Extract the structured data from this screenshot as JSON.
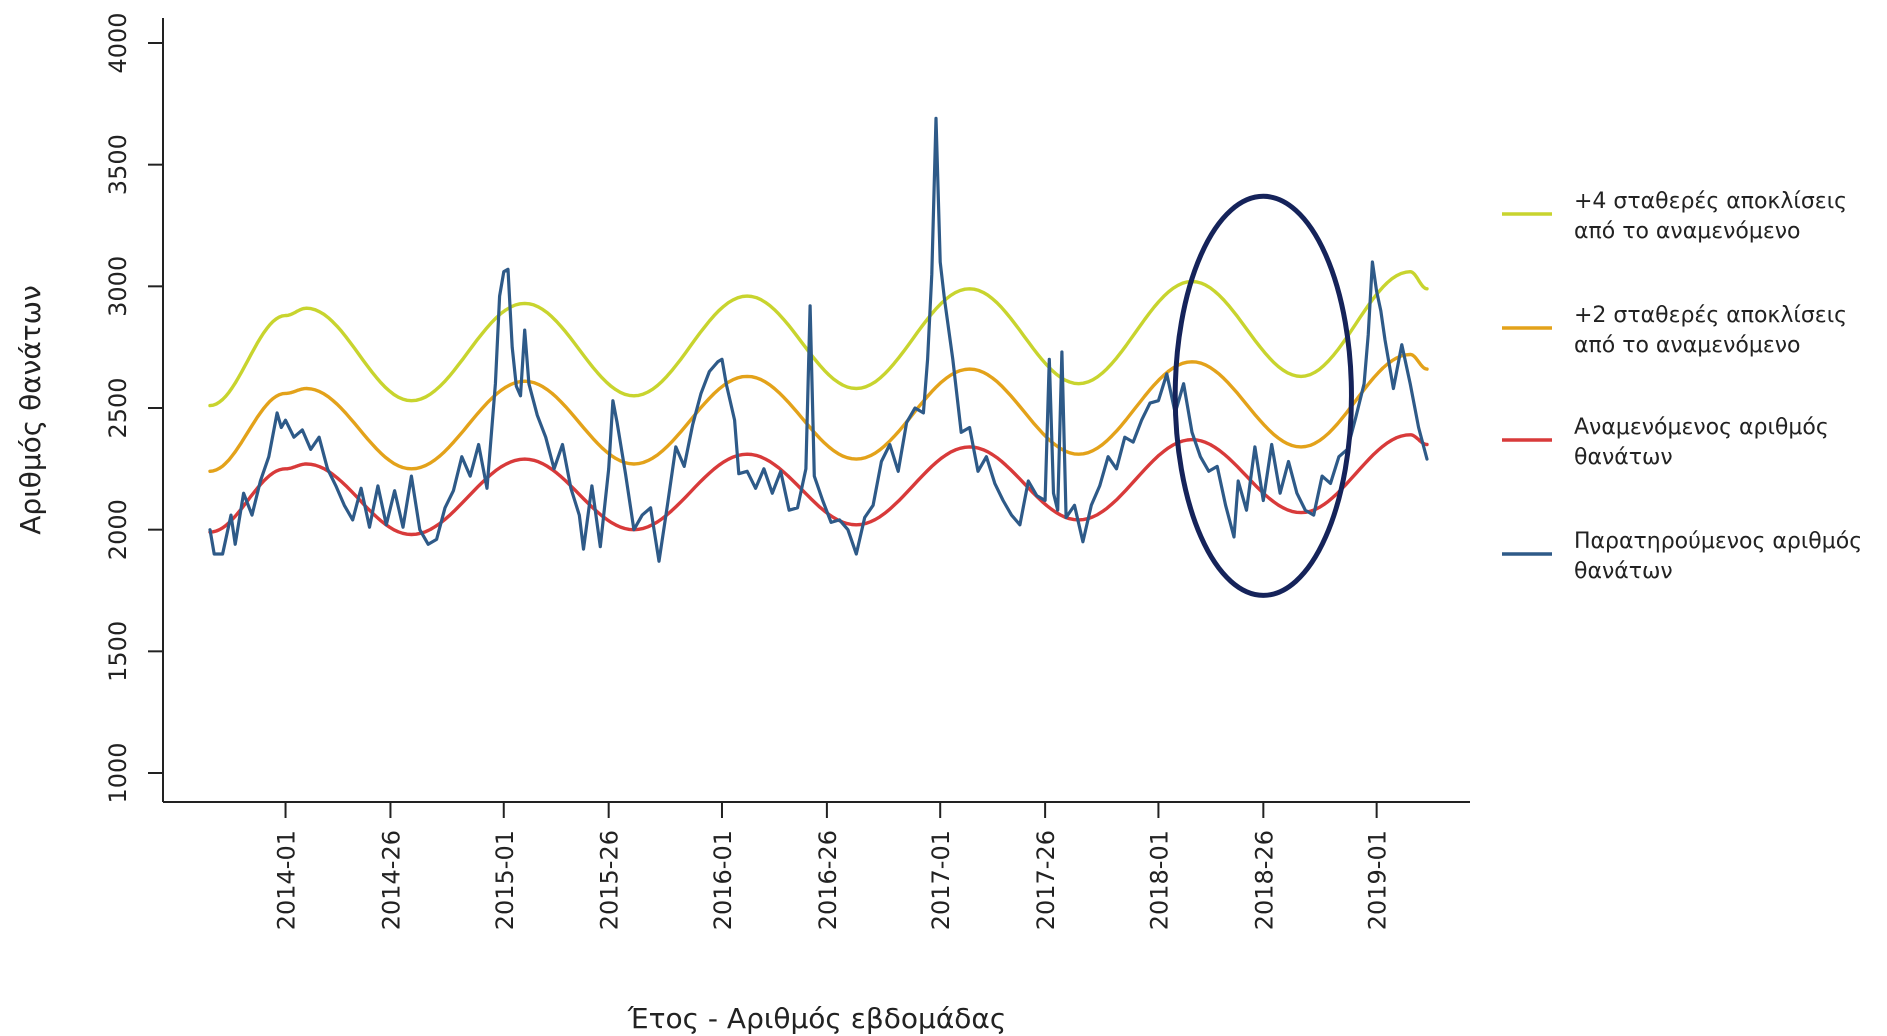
{
  "chart_data": {
    "type": "line",
    "title": "",
    "xlabel": "Έτος - Αριθμός εβδομάδας",
    "ylabel": "Αριθμός θανάτων",
    "ylim": [
      1000,
      4000
    ],
    "yticks": [
      1000,
      1500,
      2000,
      2500,
      3000,
      3500,
      4000
    ],
    "x_unit": "ISO week (year-week)",
    "x_range": [
      "2013-35",
      "2019-13"
    ],
    "xticks": [
      "2014-01",
      "2014-26",
      "2015-01",
      "2015-26",
      "2016-01",
      "2016-26",
      "2017-01",
      "2017-26",
      "2018-01",
      "2018-26",
      "2019-01"
    ],
    "grid": false,
    "legend_position": "right",
    "series": [
      {
        "name": "+4 σταθερές αποκλίσεις από το αναμενόμενο",
        "legend_lines": [
          "+4 σταθερές αποκλίσεις",
          "από το αναμενόμενο"
        ],
        "color": "#c8d42e",
        "points": [
          [
            "2013-35",
            2510
          ],
          [
            "2014-01",
            2880
          ],
          [
            "2014-06",
            2910
          ],
          [
            "2014-31",
            2530
          ],
          [
            "2015-06",
            2930
          ],
          [
            "2015-32",
            2550
          ],
          [
            "2016-07",
            2960
          ],
          [
            "2016-33",
            2580
          ],
          [
            "2017-08",
            2990
          ],
          [
            "2017-34",
            2600
          ],
          [
            "2018-09",
            3020
          ],
          [
            "2018-35",
            2630
          ],
          [
            "2019-09",
            3060
          ],
          [
            "2019-13",
            2990
          ]
        ]
      },
      {
        "name": "+2 σταθερές αποκλίσεις από το αναμενόμενο",
        "legend_lines": [
          "+2 σταθερές αποκλίσεις",
          "από το αναμενόμενο"
        ],
        "color": "#e3a21a",
        "points": [
          [
            "2013-35",
            2240
          ],
          [
            "2014-01",
            2560
          ],
          [
            "2014-06",
            2580
          ],
          [
            "2014-31",
            2250
          ],
          [
            "2015-06",
            2610
          ],
          [
            "2015-32",
            2270
          ],
          [
            "2016-07",
            2630
          ],
          [
            "2016-33",
            2290
          ],
          [
            "2017-08",
            2660
          ],
          [
            "2017-34",
            2310
          ],
          [
            "2018-09",
            2690
          ],
          [
            "2018-35",
            2340
          ],
          [
            "2019-09",
            2720
          ],
          [
            "2019-13",
            2660
          ]
        ]
      },
      {
        "name": "Αναμενόμενος αριθμός θανάτων",
        "legend_lines": [
          "Αναμενόμενος αριθμός",
          "θανάτων"
        ],
        "color": "#d83a3a",
        "points": [
          [
            "2013-35",
            1990
          ],
          [
            "2014-01",
            2250
          ],
          [
            "2014-06",
            2270
          ],
          [
            "2014-31",
            1980
          ],
          [
            "2015-06",
            2290
          ],
          [
            "2015-32",
            2000
          ],
          [
            "2016-07",
            2310
          ],
          [
            "2016-33",
            2020
          ],
          [
            "2017-08",
            2340
          ],
          [
            "2017-34",
            2040
          ],
          [
            "2018-09",
            2370
          ],
          [
            "2018-35",
            2070
          ],
          [
            "2019-09",
            2390
          ],
          [
            "2019-13",
            2350
          ]
        ]
      },
      {
        "name": "Παρατηρούμενος αριθμός θανάτων",
        "legend_lines": [
          "Παρατηρούμενος αριθμός",
          "θανάτων"
        ],
        "color": "#2e5a88",
        "points": [
          [
            "2013-35",
            2000
          ],
          [
            "2013-36",
            1900
          ],
          [
            "2013-38",
            1900
          ],
          [
            "2013-40",
            2060
          ],
          [
            "2013-41",
            1940
          ],
          [
            "2013-43",
            2150
          ],
          [
            "2013-45",
            2060
          ],
          [
            "2013-47",
            2200
          ],
          [
            "2013-49",
            2300
          ],
          [
            "2013-51",
            2480
          ],
          [
            "2013-52",
            2420
          ],
          [
            "2014-01",
            2450
          ],
          [
            "2014-03",
            2380
          ],
          [
            "2014-05",
            2410
          ],
          [
            "2014-07",
            2330
          ],
          [
            "2014-09",
            2380
          ],
          [
            "2014-11",
            2250
          ],
          [
            "2014-13",
            2180
          ],
          [
            "2014-15",
            2100
          ],
          [
            "2014-17",
            2040
          ],
          [
            "2014-19",
            2170
          ],
          [
            "2014-21",
            2010
          ],
          [
            "2014-23",
            2180
          ],
          [
            "2014-25",
            2020
          ],
          [
            "2014-27",
            2160
          ],
          [
            "2014-29",
            2010
          ],
          [
            "2014-31",
            2220
          ],
          [
            "2014-33",
            2000
          ],
          [
            "2014-35",
            1940
          ],
          [
            "2014-37",
            1960
          ],
          [
            "2014-39",
            2090
          ],
          [
            "2014-41",
            2160
          ],
          [
            "2014-43",
            2300
          ],
          [
            "2014-45",
            2220
          ],
          [
            "2014-47",
            2350
          ],
          [
            "2014-49",
            2170
          ],
          [
            "2014-51",
            2600
          ],
          [
            "2014-52",
            2960
          ],
          [
            "2015-01",
            3060
          ],
          [
            "2015-02",
            3070
          ],
          [
            "2015-03",
            2750
          ],
          [
            "2015-04",
            2590
          ],
          [
            "2015-05",
            2550
          ],
          [
            "2015-06",
            2820
          ],
          [
            "2015-07",
            2600
          ],
          [
            "2015-09",
            2470
          ],
          [
            "2015-11",
            2380
          ],
          [
            "2015-13",
            2250
          ],
          [
            "2015-15",
            2350
          ],
          [
            "2015-17",
            2170
          ],
          [
            "2015-19",
            2060
          ],
          [
            "2015-20",
            1920
          ],
          [
            "2015-22",
            2180
          ],
          [
            "2015-24",
            1930
          ],
          [
            "2015-26",
            2250
          ],
          [
            "2015-27",
            2530
          ],
          [
            "2015-28",
            2440
          ],
          [
            "2015-30",
            2230
          ],
          [
            "2015-32",
            2000
          ],
          [
            "2015-34",
            2060
          ],
          [
            "2015-36",
            2090
          ],
          [
            "2015-38",
            1870
          ],
          [
            "2015-40",
            2100
          ],
          [
            "2015-42",
            2340
          ],
          [
            "2015-44",
            2260
          ],
          [
            "2015-46",
            2430
          ],
          [
            "2015-48",
            2560
          ],
          [
            "2015-50",
            2650
          ],
          [
            "2015-52",
            2690
          ],
          [
            "2016-01",
            2700
          ],
          [
            "2016-02",
            2600
          ],
          [
            "2016-04",
            2450
          ],
          [
            "2016-05",
            2230
          ],
          [
            "2016-07",
            2240
          ],
          [
            "2016-09",
            2170
          ],
          [
            "2016-11",
            2250
          ],
          [
            "2016-13",
            2150
          ],
          [
            "2016-15",
            2240
          ],
          [
            "2016-17",
            2080
          ],
          [
            "2016-19",
            2090
          ],
          [
            "2016-21",
            2250
          ],
          [
            "2016-22",
            2920
          ],
          [
            "2016-23",
            2220
          ],
          [
            "2016-25",
            2120
          ],
          [
            "2016-27",
            2030
          ],
          [
            "2016-29",
            2040
          ],
          [
            "2016-31",
            2000
          ],
          [
            "2016-33",
            1900
          ],
          [
            "2016-35",
            2050
          ],
          [
            "2016-37",
            2100
          ],
          [
            "2016-39",
            2280
          ],
          [
            "2016-41",
            2350
          ],
          [
            "2016-43",
            2240
          ],
          [
            "2016-45",
            2440
          ],
          [
            "2016-47",
            2500
          ],
          [
            "2016-49",
            2480
          ],
          [
            "2016-50",
            2700
          ],
          [
            "2016-51",
            3050
          ],
          [
            "2016-52",
            3690
          ],
          [
            "2017-01",
            3100
          ],
          [
            "2017-02",
            2950
          ],
          [
            "2017-04",
            2700
          ],
          [
            "2017-06",
            2400
          ],
          [
            "2017-08",
            2420
          ],
          [
            "2017-10",
            2240
          ],
          [
            "2017-12",
            2300
          ],
          [
            "2017-14",
            2190
          ],
          [
            "2017-16",
            2120
          ],
          [
            "2017-18",
            2060
          ],
          [
            "2017-20",
            2020
          ],
          [
            "2017-22",
            2200
          ],
          [
            "2017-24",
            2140
          ],
          [
            "2017-26",
            2120
          ],
          [
            "2017-27",
            2700
          ],
          [
            "2017-28",
            2150
          ],
          [
            "2017-29",
            2080
          ],
          [
            "2017-30",
            2730
          ],
          [
            "2017-31",
            2050
          ],
          [
            "2017-33",
            2100
          ],
          [
            "2017-35",
            1950
          ],
          [
            "2017-37",
            2100
          ],
          [
            "2017-39",
            2180
          ],
          [
            "2017-41",
            2300
          ],
          [
            "2017-43",
            2250
          ],
          [
            "2017-45",
            2380
          ],
          [
            "2017-47",
            2360
          ],
          [
            "2017-49",
            2450
          ],
          [
            "2017-51",
            2520
          ],
          [
            "2018-01",
            2530
          ],
          [
            "2018-03",
            2640
          ],
          [
            "2018-05",
            2480
          ],
          [
            "2018-07",
            2600
          ],
          [
            "2018-09",
            2400
          ],
          [
            "2018-11",
            2300
          ],
          [
            "2018-13",
            2240
          ],
          [
            "2018-15",
            2260
          ],
          [
            "2018-17",
            2100
          ],
          [
            "2018-19",
            1970
          ],
          [
            "2018-20",
            2200
          ],
          [
            "2018-22",
            2080
          ],
          [
            "2018-24",
            2340
          ],
          [
            "2018-26",
            2120
          ],
          [
            "2018-28",
            2350
          ],
          [
            "2018-30",
            2150
          ],
          [
            "2018-32",
            2280
          ],
          [
            "2018-34",
            2150
          ],
          [
            "2018-36",
            2080
          ],
          [
            "2018-38",
            2060
          ],
          [
            "2018-40",
            2220
          ],
          [
            "2018-42",
            2190
          ],
          [
            "2018-44",
            2300
          ],
          [
            "2018-46",
            2330
          ],
          [
            "2018-48",
            2460
          ],
          [
            "2018-50",
            2600
          ],
          [
            "2018-51",
            2800
          ],
          [
            "2018-52",
            3100
          ],
          [
            "2019-01",
            2980
          ],
          [
            "2019-02",
            2900
          ],
          [
            "2019-03",
            2780
          ],
          [
            "2019-05",
            2580
          ],
          [
            "2019-07",
            2760
          ],
          [
            "2019-09",
            2600
          ],
          [
            "2019-11",
            2420
          ],
          [
            "2019-13",
            2290
          ]
        ]
      }
    ],
    "annotation": {
      "type": "ellipse",
      "color": "#15235a",
      "center": [
        "2018-26",
        2550
      ],
      "x_radius_weeks": 21,
      "y_radius": 820
    }
  }
}
